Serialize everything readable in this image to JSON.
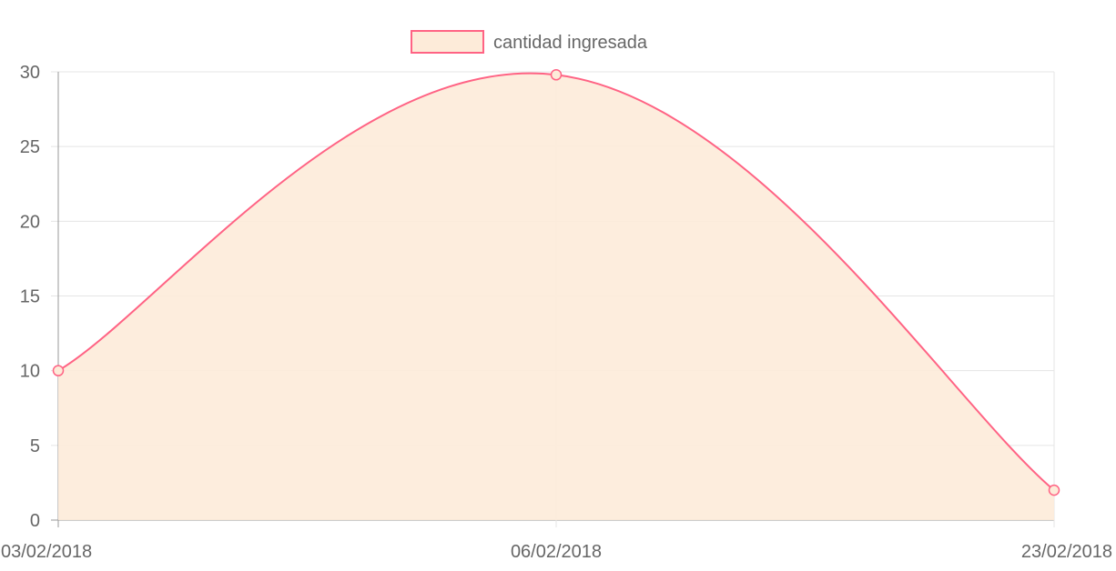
{
  "chart_data": {
    "type": "area",
    "categories": [
      "03/02/2018",
      "06/02/2018",
      "23/02/2018"
    ],
    "series": [
      {
        "name": "cantidad ingresada",
        "values": [
          10,
          29.8,
          2
        ]
      }
    ],
    "yticks": [
      "0",
      "5",
      "10",
      "15",
      "20",
      "25",
      "30"
    ],
    "ylim": [
      0,
      30
    ],
    "grid": true,
    "legend_position": "top-center",
    "colors": {
      "line": "#ff6384",
      "fill": "#fdebd9",
      "grid": "#e5e5e5",
      "axis": "#999999",
      "text": "#666666"
    }
  }
}
